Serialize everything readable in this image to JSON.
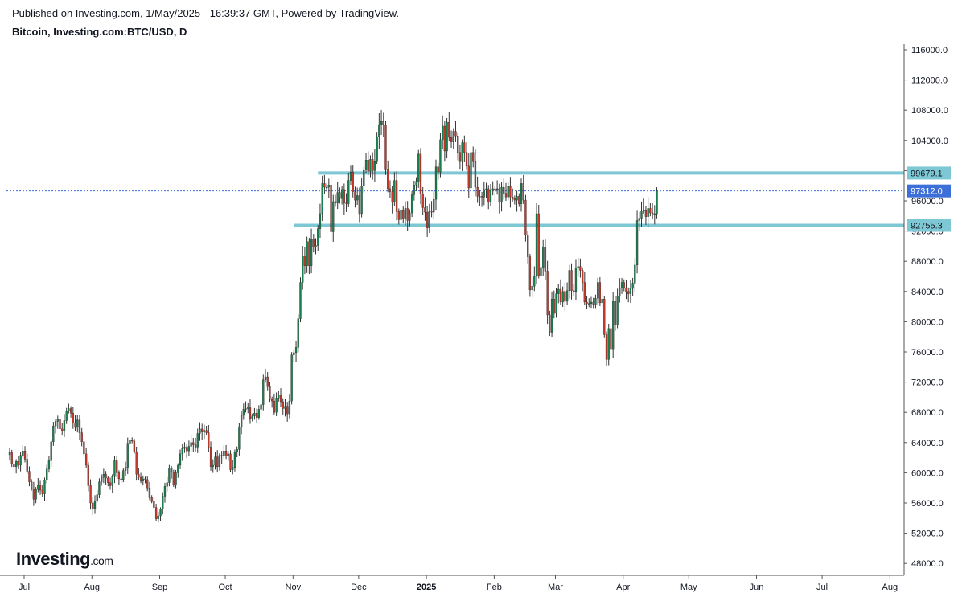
{
  "header": {
    "published": "Published on Investing.com, 1/May/2025 - 16:39:37 GMT, Powered by TradingView.",
    "symbol": "Bitcoin, Investing.com:BTC/USD, D"
  },
  "logo": {
    "main": "Investing",
    "suffix": ".com"
  },
  "colors": {
    "up": "#1a7f4f",
    "down": "#c0392b",
    "wick": "#333333",
    "level": "#7ec8d6",
    "current": "#3d6fd8"
  },
  "chart_data": {
    "type": "candlestick",
    "ylim": [
      46000,
      117000
    ],
    "yticks": [
      "116000.0",
      "112000.0",
      "108000.0",
      "104000.0",
      "100000.0",
      "96000.0",
      "92000.0",
      "88000.0",
      "84000.0",
      "80000.0",
      "76000.0",
      "72000.0",
      "68000.0",
      "64000.0",
      "60000.0",
      "56000.0",
      "52000.0",
      "48000.0"
    ],
    "xticks": [
      {
        "label": "Jul",
        "day": 0
      },
      {
        "label": "Aug",
        "day": 31
      },
      {
        "label": "Sep",
        "day": 62
      },
      {
        "label": "Oct",
        "day": 92
      },
      {
        "label": "Nov",
        "day": 123
      },
      {
        "label": "Dec",
        "day": 153
      },
      {
        "label": "2025",
        "day": 184,
        "bold": true
      },
      {
        "label": "Feb",
        "day": 215
      },
      {
        "label": "Mar",
        "day": 243
      },
      {
        "label": "Apr",
        "day": 274
      },
      {
        "label": "May",
        "day": 304
      },
      {
        "label": "Jun",
        "day": 335
      },
      {
        "label": "Jul",
        "day": 365
      },
      {
        "label": "Aug",
        "day": 396
      }
    ],
    "levels": [
      {
        "value": 99679.1,
        "label": "99679.1",
        "start_day": 141
      },
      {
        "value": 92755.3,
        "label": "92755.3",
        "start_day": 130
      }
    ],
    "current_price": {
      "value": 97312.0,
      "label": "97312.0"
    },
    "closes": [
      62700,
      61200,
      60800,
      61500,
      61000,
      62300,
      62900,
      61800,
      60200,
      58800,
      57900,
      56500,
      57800,
      58400,
      57700,
      57200,
      59000,
      60500,
      61600,
      64100,
      66200,
      66800,
      67100,
      65800,
      65500,
      66900,
      68200,
      68500,
      67900,
      66600,
      66000,
      67000,
      65300,
      64100,
      62500,
      61000,
      58300,
      56000,
      55200,
      56300,
      57100,
      58800,
      59400,
      59800,
      59300,
      58700,
      58300,
      59500,
      61600,
      60000,
      59200,
      59100,
      60300,
      60700,
      63900,
      64300,
      64200,
      62800,
      59800,
      59400,
      58900,
      59200,
      59100,
      58000,
      56700,
      56200,
      55400,
      53900,
      54300,
      55200,
      56900,
      58200,
      58700,
      60600,
      60100,
      58400,
      60000,
      61000,
      62500,
      63200,
      63400,
      62900,
      63500,
      64000,
      63700,
      63400,
      65200,
      65800,
      65400,
      65600,
      65300,
      63400,
      60800,
      61000,
      62100,
      60800,
      62300,
      62200,
      62900,
      62200,
      62500,
      60400,
      60700,
      62800,
      63100,
      66100,
      67600,
      68400,
      68500,
      68700,
      67200,
      67500,
      67900,
      67300,
      68400,
      69000,
      72300,
      72700,
      71400,
      69700,
      69500,
      68000,
      69900,
      70300,
      69400,
      68500,
      68800,
      67800,
      69500,
      75600,
      75900,
      76600,
      80400,
      85200,
      88700,
      87400,
      90600,
      87400,
      90900,
      89900,
      90100,
      92300,
      94300,
      98300,
      97800,
      97800,
      98100,
      91900,
      95900,
      95700,
      97100,
      96300,
      97500,
      95700,
      95600,
      98700,
      99800,
      97200,
      96100,
      96700,
      94300,
      98000,
      100100,
      101400,
      99900,
      101500,
      100000,
      101300,
      104500,
      106100,
      106500,
      106100,
      100200,
      97600,
      97200,
      95800,
      98700,
      94600,
      93500,
      94800,
      93700,
      95000,
      93400,
      94400,
      96800,
      98100,
      98600,
      102200,
      96900,
      95100,
      94500,
      92400,
      94700,
      94500,
      96200,
      100500,
      99800,
      104100,
      105900,
      102600,
      106400,
      104400,
      103800,
      105200,
      104600,
      102400,
      101300,
      103700,
      102400,
      100700,
      97700,
      102400,
      101300,
      97800,
      96600,
      96600,
      96500,
      97500,
      97600,
      95800,
      97400,
      97600,
      97500,
      97600,
      95800,
      97800,
      97000,
      96500,
      97900,
      96500,
      96300,
      96100,
      96600,
      95600,
      98300,
      96100,
      91500,
      88600,
      84200,
      84700,
      86000,
      94300,
      86100,
      87200,
      89900,
      86700,
      80900,
      78600,
      83000,
      81100,
      83700,
      84300,
      82600,
      84000,
      82700,
      84100,
      86800,
      84100,
      84000,
      87100,
      87300,
      86800,
      85200,
      82600,
      82400,
      82400,
      82600,
      82300,
      83100,
      85200,
      82500,
      83000,
      78300,
      75000,
      79100,
      76400,
      82700,
      79600,
      83400,
      84500,
      85200,
      84500,
      84000,
      83700,
      84400,
      85100,
      87500,
      93400,
      93700,
      94700,
      94800,
      93900,
      95000,
      94400,
      94300,
      94300,
      97300
    ]
  }
}
